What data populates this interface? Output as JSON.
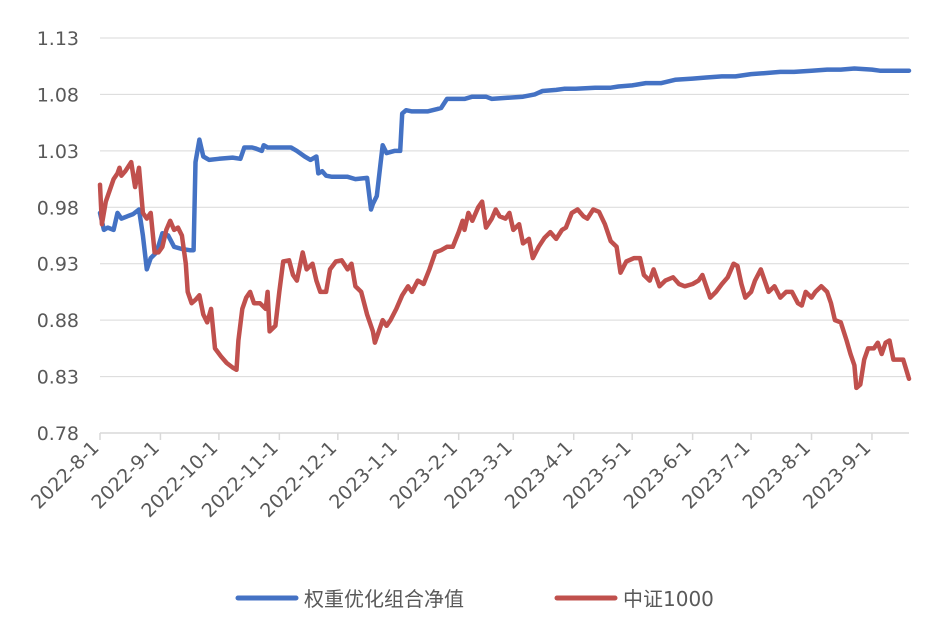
{
  "chart_data": {
    "type": "line",
    "ylim": [
      0.78,
      1.13
    ],
    "yticks": [
      "0.78",
      "0.83",
      "0.88",
      "0.93",
      "0.98",
      "1.03",
      "1.08",
      "1.13"
    ],
    "xlim": [
      "2022-08-01",
      "2023-09-20"
    ],
    "xticks": [
      "2022-8-1",
      "2022-9-1",
      "2022-10-1",
      "2022-11-1",
      "2022-12-1",
      "2023-1-1",
      "2023-2-1",
      "2023-3-1",
      "2023-4-1",
      "2023-5-1",
      "2023-6-1",
      "2023-7-1",
      "2023-8-1",
      "2023-9-1"
    ],
    "grid": "horizontal",
    "legend_position": "bottom",
    "series": [
      {
        "name": "权重优化组合净值",
        "color": "#4472C4",
        "points": [
          [
            "2022-08-01",
            0.975
          ],
          [
            "2022-08-03",
            0.96
          ],
          [
            "2022-08-05",
            0.962
          ],
          [
            "2022-08-08",
            0.96
          ],
          [
            "2022-08-10",
            0.975
          ],
          [
            "2022-08-12",
            0.97
          ],
          [
            "2022-08-15",
            0.972
          ],
          [
            "2022-08-18",
            0.974
          ],
          [
            "2022-08-21",
            0.978
          ],
          [
            "2022-08-23",
            0.955
          ],
          [
            "2022-08-25",
            0.925
          ],
          [
            "2022-08-27",
            0.935
          ],
          [
            "2022-08-30",
            0.94
          ],
          [
            "2022-09-02",
            0.957
          ],
          [
            "2022-09-05",
            0.955
          ],
          [
            "2022-09-08",
            0.945
          ],
          [
            "2022-09-12",
            0.943
          ],
          [
            "2022-09-16",
            0.942
          ],
          [
            "2022-09-18",
            0.942
          ],
          [
            "2022-09-19",
            1.02
          ],
          [
            "2022-09-21",
            1.04
          ],
          [
            "2022-09-23",
            1.025
          ],
          [
            "2022-09-26",
            1.022
          ],
          [
            "2022-10-01",
            1.023
          ],
          [
            "2022-10-08",
            1.024
          ],
          [
            "2022-10-12",
            1.023
          ],
          [
            "2022-10-14",
            1.033
          ],
          [
            "2022-10-18",
            1.033
          ],
          [
            "2022-10-20",
            1.032
          ],
          [
            "2022-10-23",
            1.03
          ],
          [
            "2022-10-24",
            1.035
          ],
          [
            "2022-10-26",
            1.033
          ],
          [
            "2022-11-02",
            1.033
          ],
          [
            "2022-11-07",
            1.033
          ],
          [
            "2022-11-10",
            1.03
          ],
          [
            "2022-11-14",
            1.025
          ],
          [
            "2022-11-17",
            1.022
          ],
          [
            "2022-11-20",
            1.025
          ],
          [
            "2022-11-21",
            1.01
          ],
          [
            "2022-11-23",
            1.012
          ],
          [
            "2022-11-25",
            1.008
          ],
          [
            "2022-11-28",
            1.007
          ],
          [
            "2022-12-01",
            1.007
          ],
          [
            "2022-12-06",
            1.007
          ],
          [
            "2022-12-10",
            1.005
          ],
          [
            "2022-12-16",
            1.006
          ],
          [
            "2022-12-18",
            0.978
          ],
          [
            "2022-12-19",
            0.983
          ],
          [
            "2022-12-21",
            0.99
          ],
          [
            "2022-12-23",
            1.02
          ],
          [
            "2022-12-24",
            1.035
          ],
          [
            "2022-12-26",
            1.028
          ],
          [
            "2022-12-30",
            1.03
          ],
          [
            "2023-01-02",
            1.03
          ],
          [
            "2023-01-03",
            1.063
          ],
          [
            "2023-01-05",
            1.066
          ],
          [
            "2023-01-08",
            1.065
          ],
          [
            "2023-01-16",
            1.065
          ],
          [
            "2023-01-21",
            1.067
          ],
          [
            "2023-01-23",
            1.068
          ],
          [
            "2023-01-26",
            1.076
          ],
          [
            "2023-02-04",
            1.076
          ],
          [
            "2023-02-08",
            1.078
          ],
          [
            "2023-02-15",
            1.078
          ],
          [
            "2023-02-18",
            1.076
          ],
          [
            "2023-02-26",
            1.077
          ],
          [
            "2023-03-06",
            1.078
          ],
          [
            "2023-03-12",
            1.08
          ],
          [
            "2023-03-16",
            1.083
          ],
          [
            "2023-03-23",
            1.084
          ],
          [
            "2023-03-27",
            1.085
          ],
          [
            "2023-04-02",
            1.085
          ],
          [
            "2023-04-12",
            1.086
          ],
          [
            "2023-04-20",
            1.086
          ],
          [
            "2023-04-24",
            1.087
          ],
          [
            "2023-05-01",
            1.088
          ],
          [
            "2023-05-08",
            1.09
          ],
          [
            "2023-05-16",
            1.09
          ],
          [
            "2023-05-23",
            1.093
          ],
          [
            "2023-06-01",
            1.094
          ],
          [
            "2023-06-08",
            1.095
          ],
          [
            "2023-06-16",
            1.096
          ],
          [
            "2023-06-23",
            1.096
          ],
          [
            "2023-07-01",
            1.098
          ],
          [
            "2023-07-09",
            1.099
          ],
          [
            "2023-07-16",
            1.1
          ],
          [
            "2023-07-23",
            1.1
          ],
          [
            "2023-08-01",
            1.101
          ],
          [
            "2023-08-09",
            1.102
          ],
          [
            "2023-08-16",
            1.102
          ],
          [
            "2023-08-23",
            1.103
          ],
          [
            "2023-09-01",
            1.102
          ],
          [
            "2023-09-05",
            1.101
          ],
          [
            "2023-09-12",
            1.101
          ],
          [
            "2023-09-20",
            1.101
          ]
        ]
      },
      {
        "name": "中证1000",
        "color": "#C0504D",
        "points": [
          [
            "2022-08-01",
            1.0
          ],
          [
            "2022-08-02",
            0.965
          ],
          [
            "2022-08-04",
            0.985
          ],
          [
            "2022-08-06",
            0.995
          ],
          [
            "2022-08-08",
            1.005
          ],
          [
            "2022-08-10",
            1.01
          ],
          [
            "2022-08-11",
            1.015
          ],
          [
            "2022-08-12",
            1.008
          ],
          [
            "2022-08-14",
            1.012
          ],
          [
            "2022-08-17",
            1.02
          ],
          [
            "2022-08-19",
            0.998
          ],
          [
            "2022-08-21",
            1.015
          ],
          [
            "2022-08-23",
            0.975
          ],
          [
            "2022-08-25",
            0.97
          ],
          [
            "2022-08-27",
            0.975
          ],
          [
            "2022-08-29",
            0.94
          ],
          [
            "2022-08-31",
            0.94
          ],
          [
            "2022-09-02",
            0.945
          ],
          [
            "2022-09-04",
            0.96
          ],
          [
            "2022-09-06",
            0.968
          ],
          [
            "2022-09-08",
            0.96
          ],
          [
            "2022-09-10",
            0.962
          ],
          [
            "2022-09-12",
            0.955
          ],
          [
            "2022-09-14",
            0.93
          ],
          [
            "2022-09-15",
            0.905
          ],
          [
            "2022-09-17",
            0.895
          ],
          [
            "2022-09-19",
            0.898
          ],
          [
            "2022-09-21",
            0.902
          ],
          [
            "2022-09-23",
            0.885
          ],
          [
            "2022-09-25",
            0.878
          ],
          [
            "2022-09-27",
            0.89
          ],
          [
            "2022-09-29",
            0.855
          ],
          [
            "2022-10-02",
            0.848
          ],
          [
            "2022-10-05",
            0.842
          ],
          [
            "2022-10-08",
            0.838
          ],
          [
            "2022-10-10",
            0.836
          ],
          [
            "2022-10-11",
            0.862
          ],
          [
            "2022-10-13",
            0.89
          ],
          [
            "2022-10-15",
            0.9
          ],
          [
            "2022-10-17",
            0.905
          ],
          [
            "2022-10-19",
            0.895
          ],
          [
            "2022-10-22",
            0.895
          ],
          [
            "2022-10-25",
            0.89
          ],
          [
            "2022-10-26",
            0.905
          ],
          [
            "2022-10-27",
            0.87
          ],
          [
            "2022-10-30",
            0.875
          ],
          [
            "2022-11-01",
            0.905
          ],
          [
            "2022-11-03",
            0.932
          ],
          [
            "2022-11-06",
            0.933
          ],
          [
            "2022-11-08",
            0.92
          ],
          [
            "2022-11-10",
            0.915
          ],
          [
            "2022-11-13",
            0.94
          ],
          [
            "2022-11-15",
            0.925
          ],
          [
            "2022-11-18",
            0.93
          ],
          [
            "2022-11-20",
            0.915
          ],
          [
            "2022-11-22",
            0.905
          ],
          [
            "2022-11-25",
            0.905
          ],
          [
            "2022-11-27",
            0.925
          ],
          [
            "2022-11-30",
            0.932
          ],
          [
            "2022-12-03",
            0.933
          ],
          [
            "2022-12-06",
            0.925
          ],
          [
            "2022-12-08",
            0.93
          ],
          [
            "2022-12-10",
            0.91
          ],
          [
            "2022-12-13",
            0.905
          ],
          [
            "2022-12-16",
            0.885
          ],
          [
            "2022-12-19",
            0.87
          ],
          [
            "2022-12-20",
            0.86
          ],
          [
            "2022-12-22",
            0.87
          ],
          [
            "2022-12-24",
            0.88
          ],
          [
            "2022-12-26",
            0.875
          ],
          [
            "2022-12-28",
            0.88
          ],
          [
            "2022-12-31",
            0.89
          ],
          [
            "2023-01-03",
            0.902
          ],
          [
            "2023-01-06",
            0.91
          ],
          [
            "2023-01-08",
            0.905
          ],
          [
            "2023-01-11",
            0.915
          ],
          [
            "2023-01-14",
            0.912
          ],
          [
            "2023-01-17",
            0.925
          ],
          [
            "2023-01-20",
            0.94
          ],
          [
            "2023-01-23",
            0.942
          ],
          [
            "2023-01-26",
            0.945
          ],
          [
            "2023-01-29",
            0.945
          ],
          [
            "2023-02-01",
            0.958
          ],
          [
            "2023-02-03",
            0.968
          ],
          [
            "2023-02-04",
            0.96
          ],
          [
            "2023-02-06",
            0.975
          ],
          [
            "2023-02-08",
            0.968
          ],
          [
            "2023-02-11",
            0.98
          ],
          [
            "2023-02-13",
            0.985
          ],
          [
            "2023-02-15",
            0.962
          ],
          [
            "2023-02-18",
            0.97
          ],
          [
            "2023-02-20",
            0.978
          ],
          [
            "2023-02-22",
            0.972
          ],
          [
            "2023-02-25",
            0.97
          ],
          [
            "2023-02-27",
            0.975
          ],
          [
            "2023-03-01",
            0.96
          ],
          [
            "2023-03-04",
            0.965
          ],
          [
            "2023-03-06",
            0.948
          ],
          [
            "2023-03-09",
            0.952
          ],
          [
            "2023-03-11",
            0.935
          ],
          [
            "2023-03-14",
            0.945
          ],
          [
            "2023-03-17",
            0.953
          ],
          [
            "2023-03-20",
            0.958
          ],
          [
            "2023-03-23",
            0.952
          ],
          [
            "2023-03-26",
            0.96
          ],
          [
            "2023-03-28",
            0.962
          ],
          [
            "2023-03-31",
            0.975
          ],
          [
            "2023-04-03",
            0.978
          ],
          [
            "2023-04-06",
            0.972
          ],
          [
            "2023-04-08",
            0.97
          ],
          [
            "2023-04-11",
            0.978
          ],
          [
            "2023-04-14",
            0.976
          ],
          [
            "2023-04-17",
            0.965
          ],
          [
            "2023-04-20",
            0.95
          ],
          [
            "2023-04-23",
            0.945
          ],
          [
            "2023-04-25",
            0.922
          ],
          [
            "2023-04-28",
            0.932
          ],
          [
            "2023-05-02",
            0.935
          ],
          [
            "2023-05-05",
            0.935
          ],
          [
            "2023-05-07",
            0.92
          ],
          [
            "2023-05-10",
            0.915
          ],
          [
            "2023-05-12",
            0.925
          ],
          [
            "2023-05-15",
            0.91
          ],
          [
            "2023-05-18",
            0.915
          ],
          [
            "2023-05-22",
            0.918
          ],
          [
            "2023-05-25",
            0.912
          ],
          [
            "2023-05-28",
            0.91
          ],
          [
            "2023-06-01",
            0.912
          ],
          [
            "2023-06-04",
            0.915
          ],
          [
            "2023-06-06",
            0.92
          ],
          [
            "2023-06-08",
            0.91
          ],
          [
            "2023-06-10",
            0.9
          ],
          [
            "2023-06-13",
            0.905
          ],
          [
            "2023-06-16",
            0.912
          ],
          [
            "2023-06-19",
            0.918
          ],
          [
            "2023-06-22",
            0.93
          ],
          [
            "2023-06-24",
            0.928
          ],
          [
            "2023-06-26",
            0.912
          ],
          [
            "2023-06-28",
            0.9
          ],
          [
            "2023-07-01",
            0.905
          ],
          [
            "2023-07-03",
            0.915
          ],
          [
            "2023-07-06",
            0.925
          ],
          [
            "2023-07-08",
            0.915
          ],
          [
            "2023-07-10",
            0.905
          ],
          [
            "2023-07-13",
            0.91
          ],
          [
            "2023-07-16",
            0.9
          ],
          [
            "2023-07-19",
            0.905
          ],
          [
            "2023-07-22",
            0.905
          ],
          [
            "2023-07-25",
            0.895
          ],
          [
            "2023-07-27",
            0.893
          ],
          [
            "2023-07-29",
            0.905
          ],
          [
            "2023-08-01",
            0.9
          ],
          [
            "2023-08-03",
            0.905
          ],
          [
            "2023-08-06",
            0.91
          ],
          [
            "2023-08-09",
            0.905
          ],
          [
            "2023-08-11",
            0.895
          ],
          [
            "2023-08-13",
            0.88
          ],
          [
            "2023-08-16",
            0.878
          ],
          [
            "2023-08-19",
            0.862
          ],
          [
            "2023-08-21",
            0.85
          ],
          [
            "2023-08-23",
            0.84
          ],
          [
            "2023-08-24",
            0.82
          ],
          [
            "2023-08-26",
            0.823
          ],
          [
            "2023-08-28",
            0.845
          ],
          [
            "2023-08-30",
            0.855
          ],
          [
            "2023-09-02",
            0.855
          ],
          [
            "2023-09-04",
            0.86
          ],
          [
            "2023-09-06",
            0.85
          ],
          [
            "2023-09-08",
            0.86
          ],
          [
            "2023-09-10",
            0.862
          ],
          [
            "2023-09-12",
            0.845
          ],
          [
            "2023-09-14",
            0.845
          ],
          [
            "2023-09-17",
            0.845
          ],
          [
            "2023-09-20",
            0.828
          ]
        ]
      }
    ]
  }
}
